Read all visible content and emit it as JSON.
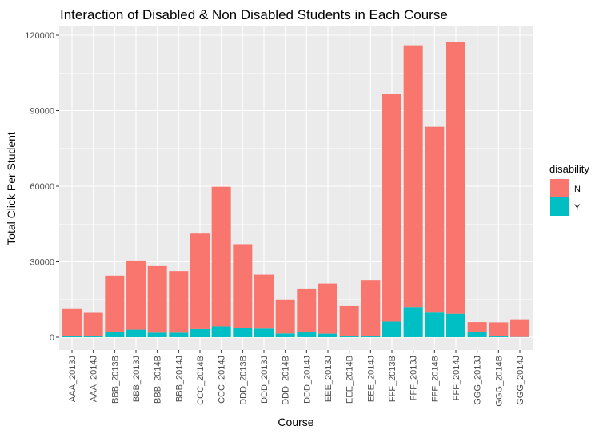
{
  "chart_data": {
    "type": "bar",
    "stacked": true,
    "title": "Interaction of Disabled & Non Disabled Students in Each Course",
    "xlabel": "Course",
    "ylabel": "Total Click Per Student",
    "ylim": [
      0,
      125000
    ],
    "yticks": [
      0,
      30000,
      60000,
      90000,
      120000
    ],
    "ytick_labels": [
      "0",
      "30000",
      "60000",
      "90000",
      "120000"
    ],
    "grid": true,
    "legend": {
      "title": "disability",
      "position": "right"
    },
    "categories": [
      "AAA_2013J",
      "AAA_2014J",
      "BBB_2013B",
      "BBB_2013J",
      "BBB_2014B",
      "BBB_2014J",
      "CCC_2014B",
      "CCC_2014J",
      "DDD_2013B",
      "DDD_2013J",
      "DDD_2014B",
      "DDD_2014J",
      "EEE_2013J",
      "EEE_2014B",
      "EEE_2014J",
      "FFF_2013B",
      "FFF_2013J",
      "FFF_2014B",
      "FFF_2014J",
      "GGG_2013J",
      "GGG_2014B",
      "GGG_2014J"
    ],
    "series": [
      {
        "name": "N",
        "color": "#F8766D",
        "values": [
          11000,
          9500,
          22500,
          27500,
          26500,
          24500,
          38000,
          55500,
          33500,
          21500,
          13500,
          17500,
          20000,
          11900,
          22300,
          90500,
          104000,
          73500,
          108000,
          4000,
          5500,
          7000
        ]
      },
      {
        "name": "Y",
        "color": "#00BFC4",
        "values": [
          500,
          500,
          2000,
          3000,
          1800,
          1800,
          3200,
          4300,
          3500,
          3400,
          1500,
          1900,
          1400,
          500,
          500,
          6200,
          12000,
          10100,
          9300,
          2000,
          400,
          100
        ]
      }
    ]
  },
  "colors": {
    "panel_bg": "#EBEBEB",
    "grid": "#FFFFFF",
    "N": "#F8766D",
    "Y": "#00BFC4"
  }
}
